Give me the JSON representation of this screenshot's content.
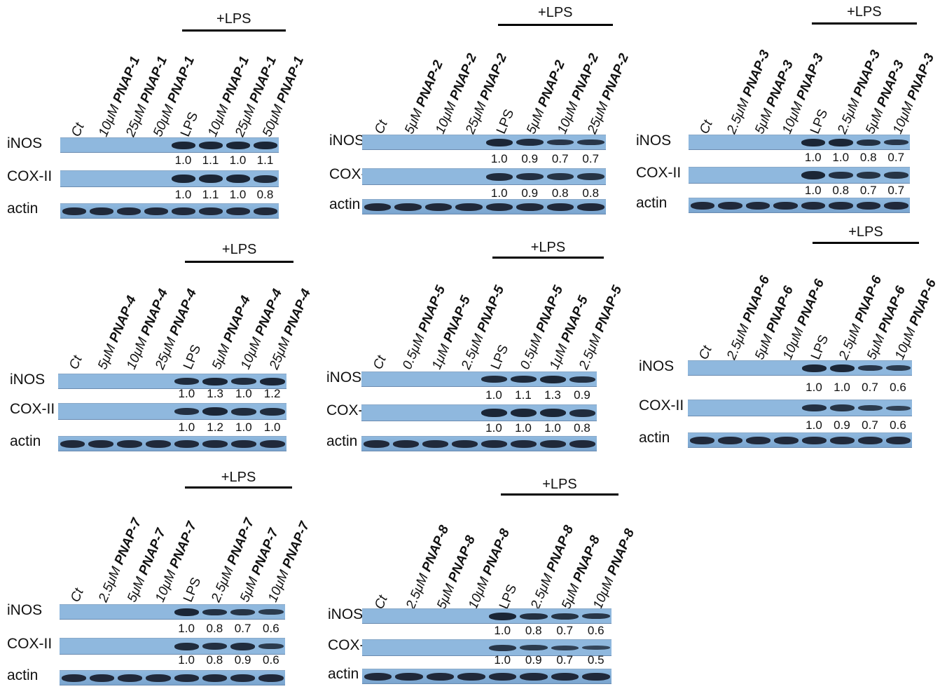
{
  "figure": {
    "row_labels": {
      "inos": "iNOS",
      "cox": "COX-II",
      "actin": "actin"
    },
    "treatment_bar_label": "+LPS",
    "colors": {
      "membrane": "#8fb8de",
      "membrane_dark": "#7aa5cf",
      "band": "#1b2636",
      "actin_band": "#20293a",
      "text": "#111111",
      "line": "#000000"
    },
    "panels": [
      {
        "compound": "PNAP-1",
        "lanes": [
          {
            "conc": "Ct",
            "cmp": ""
          },
          {
            "conc": "10μM ",
            "cmp": "PNAP-1"
          },
          {
            "conc": "25μM ",
            "cmp": "PNAP-1"
          },
          {
            "conc": "50μM ",
            "cmp": "PNAP-1"
          },
          {
            "conc": "LPS",
            "cmp": ""
          },
          {
            "conc": "10μM ",
            "cmp": "PNAP-1"
          },
          {
            "conc": "25μM ",
            "cmp": "PNAP-1"
          },
          {
            "conc": "50μM ",
            "cmp": "PNAP-1"
          }
        ],
        "inos_values": [
          "1.0",
          "1.1",
          "1.0",
          "1.1"
        ],
        "cox_values": [
          "1.0",
          "1.1",
          "1.0",
          "0.8"
        ],
        "inos_intensity": [
          0,
          0,
          0,
          0,
          1.0,
          1.0,
          1.0,
          1.0
        ],
        "cox_intensity": [
          0,
          0,
          0,
          0,
          1.0,
          1.0,
          1.0,
          0.9
        ]
      },
      {
        "compound": "PNAP-2",
        "lanes": [
          {
            "conc": "Ct",
            "cmp": ""
          },
          {
            "conc": "5μM ",
            "cmp": "PNAP-2"
          },
          {
            "conc": "10μM ",
            "cmp": "PNAP-2"
          },
          {
            "conc": "25μM ",
            "cmp": "PNAP-2"
          },
          {
            "conc": "LPS",
            "cmp": ""
          },
          {
            "conc": "5μM ",
            "cmp": "PNAP-2"
          },
          {
            "conc": "10μM ",
            "cmp": "PNAP-2"
          },
          {
            "conc": "25μM ",
            "cmp": "PNAP-2"
          }
        ],
        "inos_values": [
          "1.0",
          "0.9",
          "0.7",
          "0.7"
        ],
        "cox_values": [
          "1.0",
          "0.9",
          "0.8",
          "0.8"
        ],
        "inos_intensity": [
          0,
          0,
          0,
          0,
          1.0,
          0.9,
          0.75,
          0.75
        ],
        "cox_intensity": [
          0,
          0,
          0,
          0,
          0.9,
          0.85,
          0.8,
          0.8
        ]
      },
      {
        "compound": "PNAP-3",
        "lanes": [
          {
            "conc": "Ct",
            "cmp": ""
          },
          {
            "conc": "2.5μM ",
            "cmp": "PNAP-3"
          },
          {
            "conc": "5μM  ",
            "cmp": "PNAP-3"
          },
          {
            "conc": "10μM ",
            "cmp": "PNAP-3"
          },
          {
            "conc": "LPS",
            "cmp": ""
          },
          {
            "conc": "2.5μM ",
            "cmp": "PNAP-3"
          },
          {
            "conc": "5μM ",
            "cmp": "PNAP-3"
          },
          {
            "conc": "10μM ",
            "cmp": "PNAP-3"
          }
        ],
        "inos_values": [
          "1.0",
          "1.0",
          "0.8",
          "0.7"
        ],
        "cox_values": [
          "1.0",
          "0.8",
          "0.7",
          "0.7"
        ],
        "inos_intensity": [
          0,
          0,
          0,
          0,
          1.0,
          1.0,
          0.85,
          0.75
        ],
        "cox_intensity": [
          0,
          0,
          0,
          0,
          1.0,
          0.85,
          0.8,
          0.8
        ]
      },
      {
        "compound": "PNAP-4",
        "lanes": [
          {
            "conc": "Ct",
            "cmp": ""
          },
          {
            "conc": "5μM ",
            "cmp": "PNAP-4"
          },
          {
            "conc": "10μM ",
            "cmp": "PNAP-4"
          },
          {
            "conc": "25μM ",
            "cmp": "PNAP-4"
          },
          {
            "conc": "LPS",
            "cmp": ""
          },
          {
            "conc": "5μM ",
            "cmp": "PNAP-4"
          },
          {
            "conc": "10μM ",
            "cmp": "PNAP-4"
          },
          {
            "conc": "25μM ",
            "cmp": "PNAP-4"
          }
        ],
        "inos_values": [
          "1.0",
          "1.3",
          "1.0",
          "1.2"
        ],
        "cox_values": [
          "1.0",
          "1.2",
          "1.0",
          "1.0"
        ],
        "inos_intensity": [
          0,
          0,
          0,
          0,
          0.9,
          1.0,
          0.9,
          1.0
        ],
        "cox_intensity": [
          0,
          0,
          0,
          0,
          0.85,
          1.0,
          0.9,
          0.9
        ]
      },
      {
        "compound": "PNAP-5",
        "lanes": [
          {
            "conc": "Ct",
            "cmp": ""
          },
          {
            "conc": "0.5μM ",
            "cmp": "PNAP-5"
          },
          {
            "conc": "1μM ",
            "cmp": "PNAP-5"
          },
          {
            "conc": "2.5μM ",
            "cmp": "PNAP-5"
          },
          {
            "conc": "LPS",
            "cmp": ""
          },
          {
            "conc": "0.5μM ",
            "cmp": "PNAP-5"
          },
          {
            "conc": "1μM ",
            "cmp": "PNAP-5"
          },
          {
            "conc": "2.5μM ",
            "cmp": "PNAP-5"
          }
        ],
        "inos_values": [
          "1.0",
          "1.1",
          "1.3",
          "0.9"
        ],
        "cox_values": [
          "1.0",
          "1.0",
          "1.0",
          "0.8"
        ],
        "inos_intensity": [
          0,
          0,
          0,
          0,
          0.9,
          0.95,
          1.0,
          0.85
        ],
        "cox_intensity": [
          0,
          0,
          0,
          0,
          1.0,
          1.0,
          1.0,
          0.9
        ]
      },
      {
        "compound": "PNAP-6",
        "lanes": [
          {
            "conc": "Ct",
            "cmp": ""
          },
          {
            "conc": "2.5μM ",
            "cmp": "PNAP-6"
          },
          {
            "conc": "5μM ",
            "cmp": "PNAP-6"
          },
          {
            "conc": "10μM ",
            "cmp": "PNAP-6"
          },
          {
            "conc": "LPS",
            "cmp": ""
          },
          {
            "conc": "2.5μM ",
            "cmp": "PNAP-6"
          },
          {
            "conc": "5μM ",
            "cmp": "PNAP-6"
          },
          {
            "conc": "10μM ",
            "cmp": "PNAP-6"
          }
        ],
        "inos_values": [
          "1.0",
          "1.0",
          "0.7",
          "0.6"
        ],
        "cox_values": [
          "1.0",
          "0.9",
          "0.7",
          "0.6"
        ],
        "inos_intensity": [
          0,
          0,
          0,
          0,
          1.0,
          1.0,
          0.75,
          0.7
        ],
        "cox_intensity": [
          0,
          0,
          0,
          0,
          0.85,
          0.8,
          0.7,
          0.6
        ]
      },
      {
        "compound": "PNAP-7",
        "lanes": [
          {
            "conc": "Ct",
            "cmp": ""
          },
          {
            "conc": "2.5μM ",
            "cmp": "PNAP-7"
          },
          {
            "conc": "5μM ",
            "cmp": "PNAP-7"
          },
          {
            "conc": "10μM ",
            "cmp": "PNAP-7"
          },
          {
            "conc": "LPS",
            "cmp": ""
          },
          {
            "conc": "2.5μM ",
            "cmp": "PNAP-7"
          },
          {
            "conc": "5μM ",
            "cmp": "PNAP-7"
          },
          {
            "conc": "10μM ",
            "cmp": "PNAP-7"
          }
        ],
        "inos_values": [
          "1.0",
          "0.8",
          "0.7",
          "0.6"
        ],
        "cox_values": [
          "1.0",
          "0.8",
          "0.9",
          "0.6"
        ],
        "inos_intensity": [
          0,
          0,
          0,
          0,
          1.0,
          0.85,
          0.8,
          0.7
        ],
        "cox_intensity": [
          0,
          0,
          0,
          0,
          0.9,
          0.85,
          0.9,
          0.7
        ]
      },
      {
        "compound": "PNAP-8",
        "lanes": [
          {
            "conc": "Ct",
            "cmp": ""
          },
          {
            "conc": "2.5μM ",
            "cmp": "PNAP-8"
          },
          {
            "conc": "5μM ",
            "cmp": "PNAP-8"
          },
          {
            "conc": "10μM ",
            "cmp": "PNAP-8"
          },
          {
            "conc": "LPS",
            "cmp": ""
          },
          {
            "conc": "2.5μM ",
            "cmp": "PNAP-8"
          },
          {
            "conc": "5μM ",
            "cmp": "PNAP-8"
          },
          {
            "conc": "10μM ",
            "cmp": "PNAP-8"
          }
        ],
        "inos_values": [
          "1.0",
          "0.8",
          "0.7",
          "0.6"
        ],
        "cox_values": [
          "1.0",
          "0.9",
          "0.7",
          "0.5"
        ],
        "inos_intensity": [
          0,
          0,
          0,
          0,
          1.0,
          0.85,
          0.8,
          0.75
        ],
        "cox_intensity": [
          0,
          0,
          0,
          0,
          0.75,
          0.7,
          0.6,
          0.5
        ]
      }
    ]
  }
}
